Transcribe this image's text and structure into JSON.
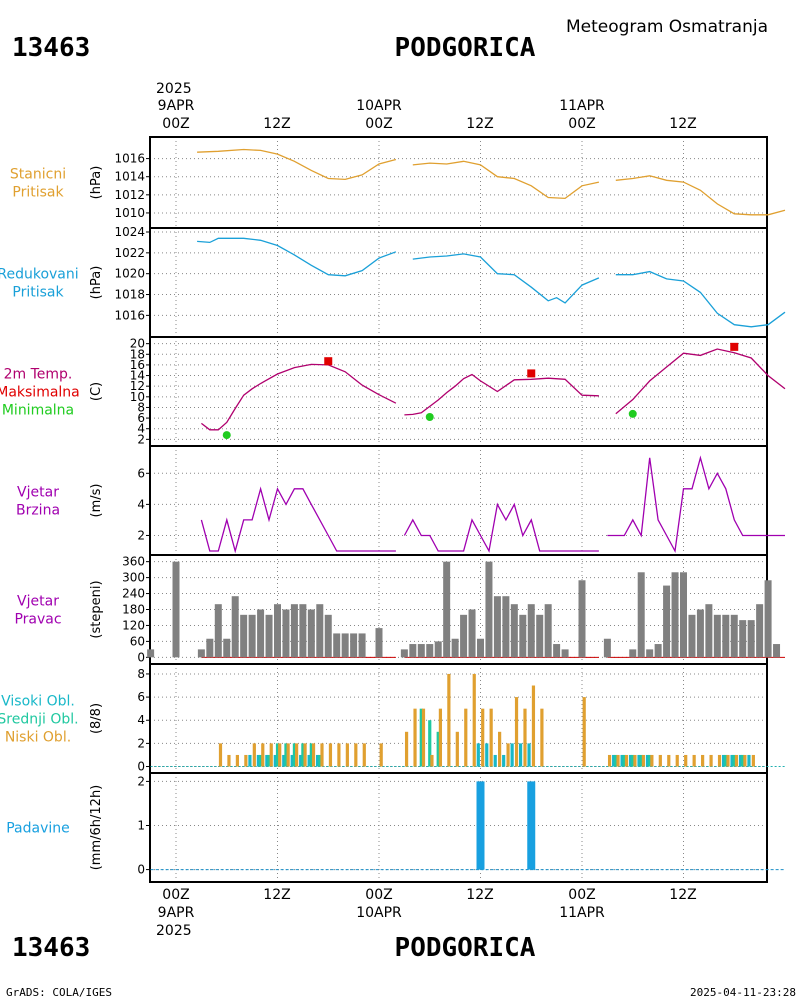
{
  "header": {
    "station_id": "13463",
    "station_name": "PODGORICA",
    "product": "Meteogram Osmatranja"
  },
  "footer": {
    "station_id": "13463",
    "station_name": "PODGORICA",
    "credit": "GrADS: COLA/IGES",
    "timestamp": "2025-04-11-23:28"
  },
  "time_axis": {
    "top_year": "2025",
    "bottom_year": "2025",
    "date_labels": [
      "9APR",
      "10APR",
      "11APR"
    ],
    "hour_labels": [
      "00Z",
      "12Z",
      "00Z",
      "12Z",
      "00Z",
      "12Z"
    ]
  },
  "colors": {
    "pressure_station": "#e0a030",
    "pressure_reduced": "#1aa0d8",
    "temp_line": "#b0006e",
    "temp_max": "#e00000",
    "temp_min": "#20cc20",
    "wind": "#a000b0",
    "direction": "#808080",
    "cloud_high": "#18b8c8",
    "cloud_mid": "#20c8a0",
    "cloud_low": "#e0a030",
    "precip": "#18a0e0"
  },
  "chart_data": [
    {
      "type": "line",
      "panel": "station_pressure",
      "label_lines": [
        "Stanicni",
        "Pritisak"
      ],
      "ylabel": "(hPa)",
      "ylim": [
        1009,
        1017.5
      ],
      "yticks": [
        1010,
        1012,
        1014,
        1016
      ],
      "x_unit": "hours since 9APR 00Z",
      "series": [
        {
          "segments": [
            {
              "x": [
                2.5,
                5,
                8,
                10,
                12,
                14,
                16,
                18,
                20,
                22,
                24,
                26
              ],
              "values": [
                1016.7,
                1016.8,
                1017.0,
                1016.9,
                1016.5,
                1015.7,
                1014.7,
                1013.8,
                1013.7,
                1014.2,
                1015.4,
                1015.9
              ]
            },
            {
              "x": [
                28,
                30,
                32,
                34,
                36,
                38,
                40,
                42,
                44,
                46,
                48,
                50
              ],
              "values": [
                1015.3,
                1015.5,
                1015.4,
                1015.7,
                1015.3,
                1014.0,
                1013.8,
                1013.0,
                1011.7,
                1011.6,
                1013.0,
                1013.4
              ]
            },
            {
              "x": [
                52,
                54,
                56,
                58,
                60,
                62,
                64,
                66,
                68,
                70,
                72
              ],
              "values": [
                1013.6,
                1013.8,
                1014.1,
                1013.6,
                1013.4,
                1012.5,
                1011.0,
                1009.9,
                1009.8,
                1009.8,
                1010.3
              ]
            }
          ]
        }
      ]
    },
    {
      "type": "line",
      "panel": "reduced_pressure",
      "label_lines": [
        "Redukovani",
        "Pritisak"
      ],
      "ylabel": "(hPa)",
      "ylim": [
        1014.5,
        1024
      ],
      "yticks": [
        1016,
        1018,
        1020,
        1022,
        1024
      ],
      "x_unit": "hours since 9APR 00Z",
      "series": [
        {
          "segments": [
            {
              "x": [
                2.5,
                4,
                5,
                8,
                10,
                12,
                14,
                16,
                18,
                20,
                22,
                24,
                26
              ],
              "values": [
                1023.1,
                1023.0,
                1023.4,
                1023.4,
                1023.2,
                1022.7,
                1021.8,
                1020.8,
                1019.9,
                1019.8,
                1020.3,
                1021.5,
                1022.1
              ]
            },
            {
              "x": [
                28,
                30,
                32,
                34,
                36,
                38,
                40,
                42,
                44,
                45,
                46,
                48,
                50
              ],
              "values": [
                1021.4,
                1021.6,
                1021.7,
                1021.9,
                1021.6,
                1020.0,
                1019.9,
                1018.7,
                1017.4,
                1017.7,
                1017.2,
                1018.9,
                1019.6
              ]
            },
            {
              "x": [
                52,
                54,
                56,
                58,
                60,
                62,
                64,
                66,
                68,
                70,
                72
              ],
              "values": [
                1019.9,
                1019.9,
                1020.2,
                1019.5,
                1019.3,
                1018.2,
                1016.2,
                1015.1,
                1014.9,
                1015.1,
                1016.3
              ]
            }
          ]
        }
      ]
    },
    {
      "type": "line",
      "panel": "temperature_2m",
      "label_lines": [
        "2m Temp.",
        "Maksimalna",
        "Minimalna"
      ],
      "ylabel": "(C)",
      "ylim": [
        1.5,
        20.5
      ],
      "yticks": [
        2,
        4,
        6,
        8,
        10,
        12,
        14,
        16,
        18,
        20
      ],
      "x_unit": "hours since 9APR 00Z",
      "series": [
        {
          "segments": [
            {
              "x": [
                3,
                4,
                5,
                6,
                7,
                8,
                9,
                10,
                12,
                14,
                16,
                18,
                20,
                22,
                24,
                26
              ],
              "values": [
                5.0,
                3.8,
                3.8,
                5.2,
                7.8,
                10.3,
                11.5,
                12.5,
                14.3,
                15.5,
                16.1,
                16.0,
                14.7,
                12.2,
                10.4,
                8.8
              ]
            },
            {
              "x": [
                27,
                28,
                29,
                31,
                32,
                33,
                34,
                35,
                36,
                38,
                40,
                42,
                44,
                46,
                48,
                50
              ],
              "values": [
                6.6,
                6.7,
                7.0,
                9.4,
                10.8,
                12.0,
                13.4,
                14.2,
                13.0,
                11.0,
                13.2,
                13.3,
                13.5,
                13.3,
                10.3,
                10.2
              ]
            },
            {
              "x": [
                52,
                54,
                56,
                58,
                60,
                62,
                64,
                66,
                68,
                70,
                72
              ],
              "values": [
                6.8,
                9.5,
                13.0,
                15.6,
                18.2,
                17.8,
                19.0,
                18.3,
                17.3,
                14.0,
                11.5
              ]
            }
          ]
        }
      ],
      "max_points": {
        "x": [
          18,
          42,
          66
        ],
        "values": [
          16.7,
          14.4,
          19.4
        ]
      },
      "min_points": {
        "x": [
          6,
          30,
          54
        ],
        "values": [
          2.8,
          6.2,
          6.8
        ]
      }
    },
    {
      "type": "line",
      "panel": "wind_speed",
      "label_lines": [
        "Vjetar",
        "Brzina"
      ],
      "ylabel": "(m/s)",
      "ylim": [
        1,
        7.5
      ],
      "yticks": [
        2,
        4,
        6
      ],
      "x_unit": "hours since 9APR 00Z",
      "series": [
        {
          "segments": [
            {
              "x": [
                3,
                4,
                5,
                6,
                7,
                8,
                9,
                10,
                11,
                12,
                13,
                14,
                15,
                16,
                18,
                19,
                20,
                21,
                22,
                23,
                24,
                25,
                26
              ],
              "values": [
                3,
                1,
                1,
                3,
                1,
                3,
                3,
                5,
                3,
                5,
                4,
                5,
                5,
                4,
                2,
                1,
                1,
                1,
                1,
                1,
                1,
                1,
                1
              ]
            },
            {
              "x": [
                27,
                28,
                29,
                30,
                31,
                32,
                33,
                34,
                35,
                36,
                37,
                38,
                39,
                40,
                41,
                42,
                43,
                44,
                45,
                46,
                47,
                48,
                49,
                50
              ],
              "values": [
                2,
                3,
                2,
                2,
                1,
                1,
                1,
                1,
                3,
                2,
                1,
                4,
                3,
                4,
                2,
                3,
                1,
                1,
                1,
                1,
                1,
                1,
                1,
                1
              ]
            },
            {
              "x": [
                51,
                53,
                54,
                55,
                56,
                57,
                58,
                59,
                60,
                61,
                62,
                63,
                64,
                65,
                66,
                67,
                68,
                69,
                70,
                71,
                72
              ],
              "values": [
                2,
                2,
                3,
                2,
                7,
                3,
                2,
                1,
                5,
                5,
                7,
                5,
                6,
                5,
                3,
                2,
                2,
                2,
                2,
                2,
                2
              ]
            }
          ]
        }
      ]
    },
    {
      "type": "bar",
      "panel": "wind_direction",
      "label_lines": [
        "Vjetar",
        "Pravac"
      ],
      "ylabel": "(stepeni)",
      "ylim": [
        -10,
        370
      ],
      "yticks": [
        0,
        60,
        120,
        180,
        240,
        300,
        360
      ],
      "x_unit": "hours since 9APR 00Z",
      "x": [
        -3,
        0,
        3,
        4,
        5,
        6,
        7,
        8,
        9,
        10,
        11,
        12,
        13,
        14,
        15,
        16,
        17,
        18,
        19,
        20,
        21,
        22,
        24,
        27,
        28,
        29,
        30,
        31,
        32,
        33,
        34,
        35,
        36,
        37,
        38,
        39,
        40,
        41,
        42,
        43,
        44,
        45,
        46,
        48,
        51,
        54,
        55,
        56,
        57,
        58,
        59,
        60,
        61,
        62,
        63,
        64,
        65,
        66,
        67,
        68,
        69,
        70,
        71
      ],
      "values": [
        30,
        360,
        30,
        70,
        200,
        70,
        230,
        160,
        160,
        180,
        160,
        200,
        180,
        200,
        200,
        180,
        200,
        160,
        90,
        90,
        90,
        90,
        110,
        30,
        50,
        50,
        50,
        60,
        360,
        70,
        160,
        180,
        70,
        360,
        230,
        230,
        200,
        160,
        200,
        160,
        200,
        50,
        30,
        290,
        70,
        30,
        320,
        30,
        50,
        270,
        320,
        320,
        160,
        180,
        200,
        160,
        160,
        160,
        140,
        140,
        200,
        290,
        50
      ]
    },
    {
      "type": "bar",
      "panel": "cloud_cover",
      "label_lines": [
        "Visoki Obl.",
        "Srednji Obl.",
        "Niski Obl."
      ],
      "ylabel": "(8/8)",
      "ylim": [
        -0.3,
        8.6
      ],
      "yticks": [
        0,
        2,
        4,
        6,
        8
      ],
      "x_unit": "hours since 9APR 00Z",
      "x": [
        5,
        6,
        7,
        8,
        9,
        10,
        11,
        12,
        13,
        14,
        15,
        16,
        17,
        18,
        19,
        20,
        21,
        22,
        24,
        27,
        28,
        29,
        30,
        31,
        32,
        33,
        34,
        35,
        36,
        37,
        38,
        39,
        40,
        41,
        42,
        43,
        44,
        45,
        46,
        48,
        51,
        52,
        53,
        54,
        55,
        56,
        57,
        58,
        59,
        60,
        61,
        62,
        63,
        64,
        65,
        66,
        67,
        68
      ],
      "series": [
        {
          "name": "Visoki Obl.",
          "values": [
            0,
            0,
            0,
            0,
            1,
            1,
            1,
            1,
            1,
            1,
            1,
            1,
            1,
            0,
            0,
            0,
            0,
            0,
            0,
            0,
            0,
            0,
            0,
            0,
            0,
            0,
            0,
            0,
            2,
            2,
            1,
            1,
            2,
            2,
            2,
            0,
            0,
            0,
            0,
            0,
            0,
            1,
            1,
            1,
            1,
            1,
            0,
            0,
            0,
            0,
            0,
            0,
            0,
            0,
            1,
            1,
            1,
            1
          ]
        },
        {
          "name": "Srednji Obl.",
          "values": [
            0,
            0,
            0,
            0,
            0,
            1,
            1,
            2,
            2,
            2,
            2,
            2,
            1,
            0,
            0,
            0,
            0,
            0,
            0,
            0,
            0,
            5,
            4,
            3,
            0,
            0,
            0,
            0,
            0,
            0,
            0,
            0,
            0,
            0,
            0,
            0,
            0,
            0,
            0,
            0,
            0,
            1,
            1,
            1,
            1,
            1,
            0,
            0,
            0,
            0,
            0,
            0,
            0,
            0,
            1,
            1,
            1,
            0
          ]
        },
        {
          "name": "Niski Obl.",
          "values": [
            2,
            1,
            1,
            1,
            2,
            2,
            2,
            2,
            2,
            2,
            2,
            2,
            2,
            2,
            2,
            2,
            2,
            2,
            2,
            3,
            5,
            5,
            1,
            5,
            8,
            3,
            5,
            8,
            5,
            5,
            3,
            2,
            6,
            5,
            7,
            5,
            0,
            0,
            0,
            6,
            1,
            1,
            1,
            1,
            1,
            1,
            1,
            1,
            1,
            1,
            1,
            1,
            1,
            1,
            1,
            1,
            1,
            1
          ]
        }
      ]
    },
    {
      "type": "bar",
      "panel": "precipitation",
      "label_lines": [
        "Padavine"
      ],
      "ylabel": "(mm/6h/12h)",
      "ylim": [
        -0.1,
        2.1
      ],
      "yticks": [
        0,
        1,
        2
      ],
      "x_unit": "hours since 9APR 00Z",
      "x": [
        36,
        42
      ],
      "values": [
        2,
        2
      ]
    }
  ]
}
